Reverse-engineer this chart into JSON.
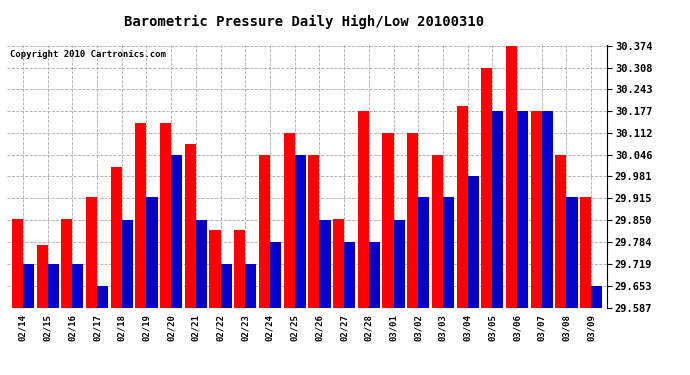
{
  "title": "Barometric Pressure Daily High/Low 20100310",
  "copyright": "Copyright 2010 Cartronics.com",
  "dates": [
    "02/14",
    "02/15",
    "02/16",
    "02/17",
    "02/18",
    "02/19",
    "02/20",
    "02/21",
    "02/22",
    "02/23",
    "02/24",
    "02/25",
    "02/26",
    "02/27",
    "02/28",
    "03/01",
    "03/02",
    "03/03",
    "03/04",
    "03/05",
    "03/06",
    "03/07",
    "03/08",
    "03/09"
  ],
  "highs": [
    29.853,
    29.775,
    29.853,
    29.918,
    30.009,
    30.143,
    30.143,
    30.077,
    29.82,
    29.82,
    30.046,
    30.112,
    30.046,
    29.853,
    30.178,
    30.112,
    30.112,
    30.046,
    30.192,
    30.308,
    30.374,
    30.178,
    30.046,
    29.918
  ],
  "lows": [
    29.719,
    29.719,
    29.719,
    29.653,
    29.85,
    29.918,
    30.046,
    29.85,
    29.719,
    29.719,
    29.784,
    30.046,
    29.85,
    29.784,
    29.784,
    29.85,
    29.918,
    29.918,
    29.981,
    30.178,
    30.178,
    30.178,
    29.918,
    29.653
  ],
  "high_color": "#ff0000",
  "low_color": "#0000cc",
  "bg_color": "#ffffff",
  "grid_color": "#aaaaaa",
  "ymin": 29.587,
  "ymax": 30.374,
  "ytick_values": [
    29.587,
    29.653,
    29.719,
    29.784,
    29.85,
    29.915,
    29.981,
    30.046,
    30.112,
    30.177,
    30.243,
    30.308,
    30.374
  ],
  "ytick_labels": [
    "29.587",
    "29.653",
    "29.719",
    "29.784",
    "29.850",
    "29.915",
    "29.981",
    "30.046",
    "30.112",
    "30.177",
    "30.243",
    "30.308",
    "30.374"
  ],
  "figwidth": 6.9,
  "figheight": 3.75,
  "dpi": 100
}
